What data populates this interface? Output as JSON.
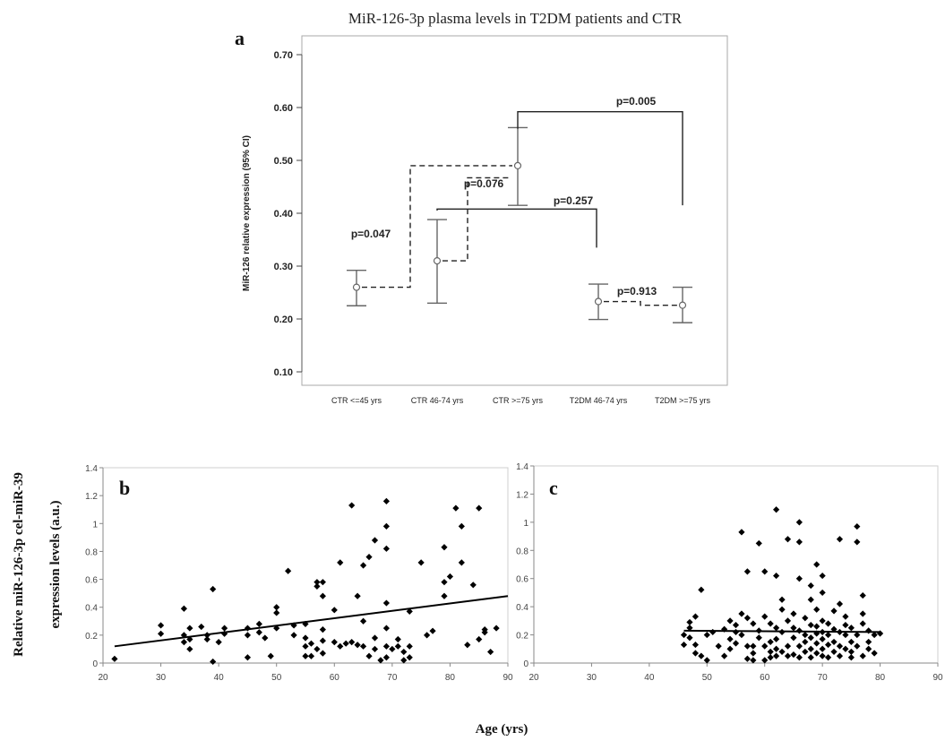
{
  "figure": {
    "panel_a_title": "MiR-126-3p plasma levels in T2DM patients and CTR",
    "shared_ylabel_line1": "Relative miR-126-3p cel-miR-39",
    "shared_ylabel_line2": "expression levels (a.u.)",
    "shared_xlabel": "Age (yrs)"
  },
  "chart_data": [
    {
      "panel": "a",
      "type": "errorbar",
      "title": "MiR-126-3p plasma levels in T2DM patients and CTR",
      "ylabel": "MiR-126 relative expression (95% CI)",
      "xlabel": "",
      "ylim": [
        0.07,
        0.72
      ],
      "yticks": [
        0.1,
        0.2,
        0.3,
        0.4,
        0.5,
        0.6,
        0.7
      ],
      "ytick_labels": [
        "0.10",
        "0.20",
        "0.30",
        "0.40",
        "0.50",
        "0.60",
        "0.70"
      ],
      "categories": [
        "CTR <=45 yrs",
        "CTR 46-74 yrs",
        "CTR >=75 yrs",
        "T2DM 46-74 yrs",
        "T2DM >=75 yrs"
      ],
      "mean": [
        0.26,
        0.31,
        0.49,
        0.233,
        0.226
      ],
      "ci_low": [
        0.225,
        0.23,
        0.415,
        0.199,
        0.193
      ],
      "ci_high": [
        0.292,
        0.388,
        0.562,
        0.266,
        0.26
      ],
      "comparisons": [
        {
          "label": "p=0.047",
          "from": 0,
          "to": 1,
          "style": "dashed"
        },
        {
          "label": "p=0.076",
          "from": 1,
          "to": 2,
          "style": "dashed"
        },
        {
          "label": "p=0.257",
          "from": 1,
          "to": 3,
          "style": "solid"
        },
        {
          "label": "p=0.005",
          "from": 2,
          "to": 4,
          "style": "solid"
        },
        {
          "label": "p=0.913",
          "from": 3,
          "to": 4,
          "style": "dashed"
        }
      ],
      "grid": false
    },
    {
      "panel": "b",
      "type": "scatter",
      "xlim": [
        20,
        90
      ],
      "ylim": [
        0,
        1.4
      ],
      "xticks": [
        20,
        30,
        40,
        50,
        60,
        70,
        80,
        90
      ],
      "yticks": [
        0,
        0.2,
        0.4,
        0.6,
        0.8,
        1,
        1.2,
        1.4
      ],
      "ytick_labels": [
        "0",
        "0.2",
        "0.4",
        "0.6",
        "0.8",
        "1",
        "1.2",
        "1.4"
      ],
      "trendline": {
        "x": [
          22,
          90
        ],
        "y": [
          0.12,
          0.48
        ]
      },
      "points": [
        [
          22,
          0.03
        ],
        [
          30,
          0.27
        ],
        [
          30,
          0.21
        ],
        [
          34,
          0.39
        ],
        [
          34,
          0.2
        ],
        [
          34,
          0.15
        ],
        [
          35,
          0.25
        ],
        [
          35,
          0.17
        ],
        [
          35,
          0.1
        ],
        [
          37,
          0.26
        ],
        [
          38,
          0.2
        ],
        [
          38,
          0.17
        ],
        [
          39,
          0.53
        ],
        [
          39,
          0.01
        ],
        [
          40,
          0.15
        ],
        [
          41,
          0.25
        ],
        [
          41,
          0.21
        ],
        [
          45,
          0.25
        ],
        [
          45,
          0.2
        ],
        [
          45,
          0.04
        ],
        [
          47,
          0.28
        ],
        [
          47,
          0.22
        ],
        [
          48,
          0.18
        ],
        [
          49,
          0.05
        ],
        [
          50,
          0.4
        ],
        [
          50,
          0.36
        ],
        [
          50,
          0.25
        ],
        [
          52,
          0.66
        ],
        [
          53,
          0.27
        ],
        [
          53,
          0.2
        ],
        [
          55,
          0.28
        ],
        [
          55,
          0.18
        ],
        [
          55,
          0.12
        ],
        [
          55,
          0.05
        ],
        [
          56,
          0.14
        ],
        [
          56,
          0.05
        ],
        [
          57,
          0.58
        ],
        [
          57,
          0.55
        ],
        [
          57,
          0.1
        ],
        [
          58,
          0.58
        ],
        [
          58,
          0.48
        ],
        [
          58,
          0.24
        ],
        [
          58,
          0.16
        ],
        [
          58,
          0.07
        ],
        [
          60,
          0.38
        ],
        [
          60,
          0.15
        ],
        [
          61,
          0.72
        ],
        [
          61,
          0.12
        ],
        [
          62,
          0.14
        ],
        [
          63,
          1.13
        ],
        [
          63,
          0.15
        ],
        [
          64,
          0.13
        ],
        [
          64,
          0.48
        ],
        [
          65,
          0.7
        ],
        [
          65,
          0.3
        ],
        [
          65,
          0.12
        ],
        [
          66,
          0.76
        ],
        [
          66,
          0.05
        ],
        [
          67,
          0.1
        ],
        [
          67,
          0.18
        ],
        [
          67,
          0.88
        ],
        [
          68,
          0.02
        ],
        [
          69,
          0.04
        ],
        [
          69,
          0.12
        ],
        [
          69,
          0.25
        ],
        [
          69,
          0.43
        ],
        [
          69,
          0.82
        ],
        [
          69,
          0.98
        ],
        [
          69,
          1.16
        ],
        [
          70,
          0.1
        ],
        [
          71,
          0.12
        ],
        [
          71,
          0.17
        ],
        [
          72,
          0.08
        ],
        [
          72,
          0.02
        ],
        [
          73,
          0.12
        ],
        [
          73,
          0.37
        ],
        [
          73,
          0.04
        ],
        [
          75,
          0.72
        ],
        [
          76,
          0.2
        ],
        [
          77,
          0.23
        ],
        [
          79,
          0.48
        ],
        [
          79,
          0.58
        ],
        [
          79,
          0.83
        ],
        [
          80,
          0.62
        ],
        [
          81,
          1.11
        ],
        [
          82,
          0.98
        ],
        [
          82,
          0.72
        ],
        [
          83,
          0.13
        ],
        [
          84,
          0.56
        ],
        [
          85,
          1.11
        ],
        [
          85,
          0.17
        ],
        [
          86,
          0.22
        ],
        [
          86,
          0.24
        ],
        [
          87,
          0.08
        ],
        [
          88,
          0.25
        ]
      ]
    },
    {
      "panel": "c",
      "type": "scatter",
      "xlim": [
        20,
        90
      ],
      "ylim": [
        0,
        1.4
      ],
      "xticks": [
        20,
        30,
        40,
        50,
        60,
        70,
        80,
        90
      ],
      "yticks": [
        0,
        0.2,
        0.4,
        0.6,
        0.8,
        1,
        1.2,
        1.4
      ],
      "ytick_labels": [
        "0",
        "0.2",
        "0.4",
        "0.6",
        "0.8",
        "1",
        "1.2",
        "1.4"
      ],
      "trendline": {
        "x": [
          46,
          80
        ],
        "y": [
          0.23,
          0.22
        ]
      },
      "points": [
        [
          46,
          0.2
        ],
        [
          46,
          0.13
        ],
        [
          47,
          0.29
        ],
        [
          47,
          0.18
        ],
        [
          47,
          0.25
        ],
        [
          48,
          0.13
        ],
        [
          48,
          0.07
        ],
        [
          48,
          0.33
        ],
        [
          49,
          0.05
        ],
        [
          49,
          0.52
        ],
        [
          50,
          0.2
        ],
        [
          50,
          0.02
        ],
        [
          51,
          0.22
        ],
        [
          52,
          0.12
        ],
        [
          53,
          0.24
        ],
        [
          53,
          0.05
        ],
        [
          54,
          0.17
        ],
        [
          54,
          0.1
        ],
        [
          54,
          0.3
        ],
        [
          55,
          0.22
        ],
        [
          55,
          0.14
        ],
        [
          55,
          0.27
        ],
        [
          56,
          0.93
        ],
        [
          56,
          0.2
        ],
        [
          56,
          0.35
        ],
        [
          57,
          0.03
        ],
        [
          57,
          0.65
        ],
        [
          57,
          0.32
        ],
        [
          57,
          0.12
        ],
        [
          58,
          0.28
        ],
        [
          58,
          0.12
        ],
        [
          58,
          0.07
        ],
        [
          58,
          0.02
        ],
        [
          59,
          0.23
        ],
        [
          59,
          0.85
        ],
        [
          59,
          0.18
        ],
        [
          60,
          0.65
        ],
        [
          60,
          0.33
        ],
        [
          60,
          0.12
        ],
        [
          60,
          0.02
        ],
        [
          61,
          0.28
        ],
        [
          61,
          0.15
        ],
        [
          61,
          0.08
        ],
        [
          61,
          0.04
        ],
        [
          62,
          1.09
        ],
        [
          62,
          0.62
        ],
        [
          62,
          0.25
        ],
        [
          62,
          0.05
        ],
        [
          62,
          0.17
        ],
        [
          62,
          0.1
        ],
        [
          63,
          0.38
        ],
        [
          63,
          0.45
        ],
        [
          63,
          0.22
        ],
        [
          63,
          0.08
        ],
        [
          64,
          0.88
        ],
        [
          64,
          0.3
        ],
        [
          64,
          0.12
        ],
        [
          64,
          0.05
        ],
        [
          65,
          0.18
        ],
        [
          65,
          0.25
        ],
        [
          65,
          0.06
        ],
        [
          65,
          0.35
        ],
        [
          66,
          1.0
        ],
        [
          66,
          0.86
        ],
        [
          66,
          0.6
        ],
        [
          66,
          0.23
        ],
        [
          66,
          0.12
        ],
        [
          66,
          0.04
        ],
        [
          67,
          0.32
        ],
        [
          67,
          0.2
        ],
        [
          67,
          0.15
        ],
        [
          67,
          0.08
        ],
        [
          68,
          0.55
        ],
        [
          68,
          0.45
        ],
        [
          68,
          0.27
        ],
        [
          68,
          0.18
        ],
        [
          68,
          0.1
        ],
        [
          68,
          0.04
        ],
        [
          69,
          0.7
        ],
        [
          69,
          0.38
        ],
        [
          69,
          0.26
        ],
        [
          69,
          0.21
        ],
        [
          69,
          0.14
        ],
        [
          69,
          0.07
        ],
        [
          70,
          0.5
        ],
        [
          70,
          0.62
        ],
        [
          70,
          0.3
        ],
        [
          70,
          0.22
        ],
        [
          70,
          0.17
        ],
        [
          70,
          0.1
        ],
        [
          70,
          0.05
        ],
        [
          71,
          0.28
        ],
        [
          71,
          0.2
        ],
        [
          71,
          0.13
        ],
        [
          71,
          0.04
        ],
        [
          72,
          0.37
        ],
        [
          72,
          0.24
        ],
        [
          72,
          0.15
        ],
        [
          72,
          0.08
        ],
        [
          73,
          0.88
        ],
        [
          73,
          0.42
        ],
        [
          73,
          0.22
        ],
        [
          73,
          0.12
        ],
        [
          73,
          0.05
        ],
        [
          74,
          0.33
        ],
        [
          74,
          0.2
        ],
        [
          74,
          0.1
        ],
        [
          74,
          0.27
        ],
        [
          75,
          0.25
        ],
        [
          75,
          0.15
        ],
        [
          75,
          0.08
        ],
        [
          75,
          0.04
        ],
        [
          76,
          0.97
        ],
        [
          76,
          0.86
        ],
        [
          76,
          0.2
        ],
        [
          76,
          0.12
        ],
        [
          77,
          0.48
        ],
        [
          77,
          0.35
        ],
        [
          77,
          0.28
        ],
        [
          77,
          0.05
        ],
        [
          78,
          0.23
        ],
        [
          78,
          0.15
        ],
        [
          78,
          0.1
        ],
        [
          79,
          0.2
        ],
        [
          79,
          0.07
        ],
        [
          80,
          0.21
        ]
      ]
    }
  ]
}
